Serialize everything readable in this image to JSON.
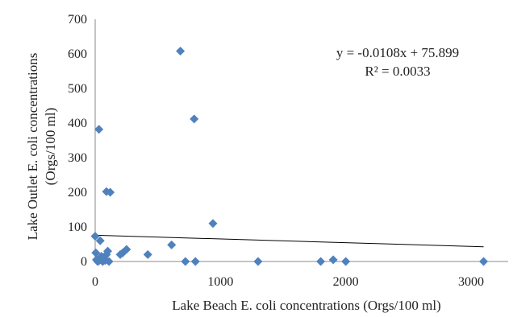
{
  "chart_data": {
    "type": "scatter",
    "xlabel": "Lake Beach E. coli concentrations  (Orgs/100 ml)",
    "ylabel_lines": [
      "Lake Outlet E. coli concentrations",
      "(Orgs/100 ml)"
    ],
    "xlim": [
      0,
      3500
    ],
    "ylim": [
      0,
      700
    ],
    "xticks": [
      0,
      1000,
      2000,
      3000
    ],
    "yticks": [
      0,
      100,
      200,
      300,
      400,
      500,
      600,
      700
    ],
    "grid": false,
    "marker_color": "#4F81BD",
    "line_color": "#000000",
    "trendline": {
      "slope": -0.0108,
      "intercept": 75.899,
      "x_range": [
        0,
        3100
      ]
    },
    "annotations": [
      "y = -0.0108x + 75.899",
      "R² = 0.0033"
    ],
    "series": [
      {
        "points": [
          [
            0,
            73
          ],
          [
            5,
            25
          ],
          [
            10,
            5
          ],
          [
            20,
            0
          ],
          [
            30,
            2
          ],
          [
            40,
            60
          ],
          [
            50,
            15
          ],
          [
            60,
            0
          ],
          [
            70,
            8
          ],
          [
            80,
            3
          ],
          [
            90,
            20
          ],
          [
            100,
            30
          ],
          [
            110,
            0
          ],
          [
            200,
            20
          ],
          [
            220,
            25
          ],
          [
            250,
            35
          ],
          [
            90,
            202
          ],
          [
            120,
            200
          ],
          [
            30,
            382
          ],
          [
            420,
            20
          ],
          [
            610,
            48
          ],
          [
            680,
            608
          ],
          [
            720,
            0
          ],
          [
            790,
            412
          ],
          [
            800,
            0
          ],
          [
            940,
            110
          ],
          [
            1300,
            0
          ],
          [
            1800,
            0
          ],
          [
            1900,
            5
          ],
          [
            2000,
            0
          ],
          [
            3100,
            0
          ]
        ]
      }
    ]
  }
}
